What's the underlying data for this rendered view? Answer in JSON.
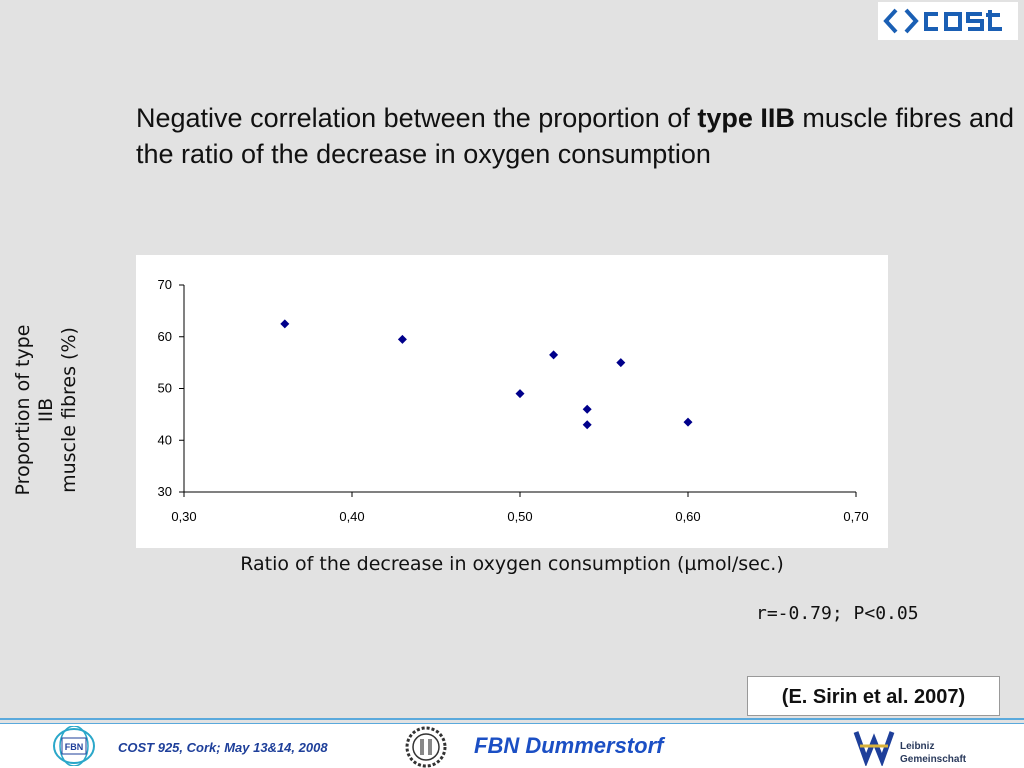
{
  "slide": {
    "title_pre": "Negative correlation between the proportion of ",
    "title_bold": "type IIB",
    "title_post": " muscle fibres and the ratio of the decrease in oxygen consumption",
    "stats": "r=-0.79; P<0.05",
    "citation": "(E. Sirin et al. 2007)"
  },
  "logos": {
    "cost": "cost",
    "fbn_badge": "FBN",
    "leibniz_line1": "Leibniz",
    "leibniz_line2": "Gemeinschaft"
  },
  "footer": {
    "meeting": "COST 925, Cork; May 13&14, 2008",
    "institute": "FBN Dummerstorf"
  },
  "chart_data": {
    "type": "scatter",
    "xlabel": "Ratio of the decrease in oxygen consumption (µmol/sec.)",
    "ylabel_line1": "Proportion of type IIB",
    "ylabel_line2": "muscle fibres (%)",
    "xlim": [
      0.3,
      0.7
    ],
    "ylim": [
      30,
      70
    ],
    "x_ticks": [
      "0,30",
      "0,40",
      "0,50",
      "0,60",
      "0,70"
    ],
    "y_ticks": [
      "30",
      "40",
      "50",
      "60",
      "70"
    ],
    "series": [
      {
        "color": "#00008b",
        "marker": "diamond",
        "points": [
          [
            0.36,
            62.5
          ],
          [
            0.43,
            59.5
          ],
          [
            0.5,
            49.0
          ],
          [
            0.52,
            56.5
          ],
          [
            0.54,
            46.0
          ],
          [
            0.54,
            43.0
          ],
          [
            0.56,
            55.0
          ],
          [
            0.6,
            43.5
          ]
        ]
      }
    ],
    "grid": false
  },
  "colors": {
    "background": "#e2e2e2",
    "marker": "#00008b",
    "footer_text": "#1e3f9a",
    "accent_line": "#5aa9dc"
  }
}
